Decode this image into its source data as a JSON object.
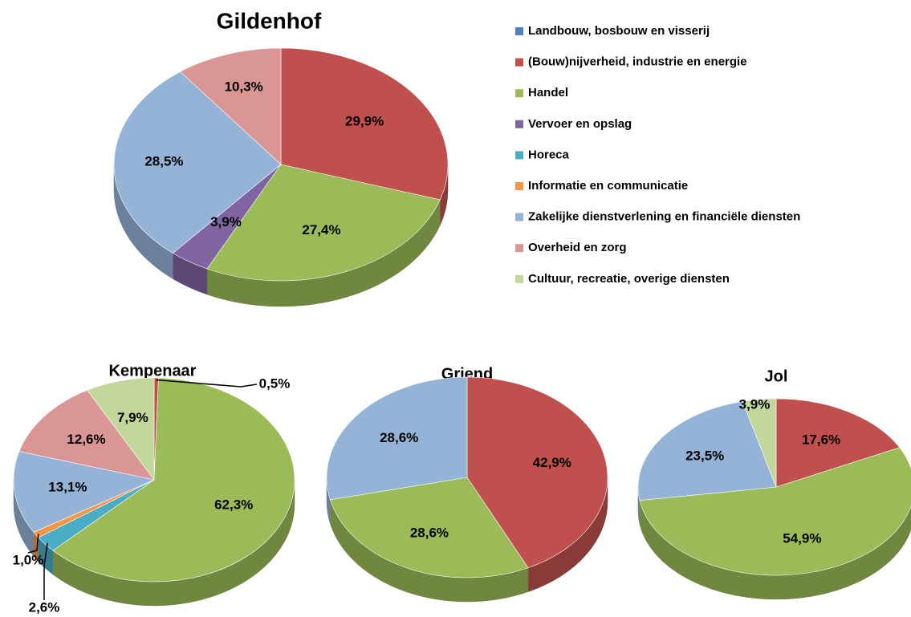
{
  "legend": [
    {
      "name": "Landbouw, bosbouw en visserij",
      "color": "#4f81bd"
    },
    {
      "name": "(Bouw)nijverheid, industrie en energie",
      "color": "#c0504d"
    },
    {
      "name": "Handel",
      "color": "#9bbb59"
    },
    {
      "name": "Vervoer en opslag",
      "color": "#8064a2"
    },
    {
      "name": "Horeca",
      "color": "#4bacc6"
    },
    {
      "name": "Informatie en communicatie",
      "color": "#f79646"
    },
    {
      "name": "Zakelijke dienstverlening en financiële diensten",
      "color": "#95b3d7"
    },
    {
      "name": "Overheid en zorg",
      "color": "#d99694"
    },
    {
      "name": "Cultuur, recreatie, overige diensten",
      "color": "#c3d69b"
    }
  ],
  "chart_data": [
    {
      "type": "pie",
      "title": "Gildenhof",
      "categories": [
        "(Bouw)nijverheid, industrie en energie",
        "Handel",
        "Vervoer en opslag",
        "Zakelijke dienstverlening en financiële diensten",
        "Overheid en zorg"
      ],
      "values": [
        29.9,
        27.4,
        3.9,
        28.5,
        10.3
      ],
      "value_labels": [
        "29,9%",
        "27,4%",
        "3,9%",
        "28,5%",
        "10,3%"
      ]
    },
    {
      "type": "pie",
      "title": "Kempenaar",
      "categories": [
        "(Bouw)nijverheid, industrie en energie",
        "Handel",
        "Horeca",
        "Informatie en communicatie",
        "Zakelijke dienstverlening en financiële diensten",
        "Overheid en zorg",
        "Cultuur, recreatie, overige diensten"
      ],
      "values": [
        0.5,
        62.3,
        2.6,
        1.0,
        13.1,
        12.6,
        7.9
      ],
      "value_labels": [
        "0,5%",
        "62,3%",
        "2,6%",
        "1,0%",
        "13,1%",
        "12,6%",
        "7,9%"
      ]
    },
    {
      "type": "pie",
      "title": "Griend",
      "categories": [
        "(Bouw)nijverheid, industrie en energie",
        "Handel",
        "Zakelijke dienstverlening en financiële diensten"
      ],
      "values": [
        42.9,
        28.6,
        28.6
      ],
      "value_labels": [
        "42,9%",
        "28,6%",
        "28,6%"
      ]
    },
    {
      "type": "pie",
      "title": "Jol",
      "categories": [
        "(Bouw)nijverheid, industrie en energie",
        "Handel",
        "Zakelijke dienstverlening en financiële diensten",
        "Cultuur, recreatie, overige diensten"
      ],
      "values": [
        17.6,
        54.9,
        23.5,
        3.9
      ],
      "value_labels": [
        "17,6%",
        "54,9%",
        "23,5%",
        "3,9%"
      ]
    }
  ]
}
